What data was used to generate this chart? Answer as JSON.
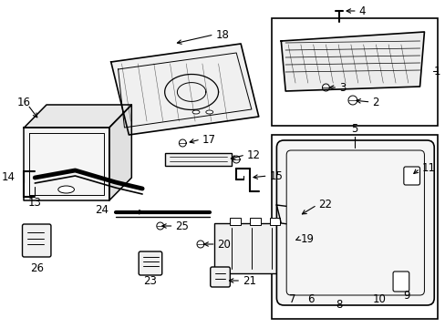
{
  "background_color": "#ffffff",
  "line_color": "#000000",
  "text_color": "#000000",
  "font_size": 8.5,
  "fig_width": 4.89,
  "fig_height": 3.6,
  "dpi": 100
}
